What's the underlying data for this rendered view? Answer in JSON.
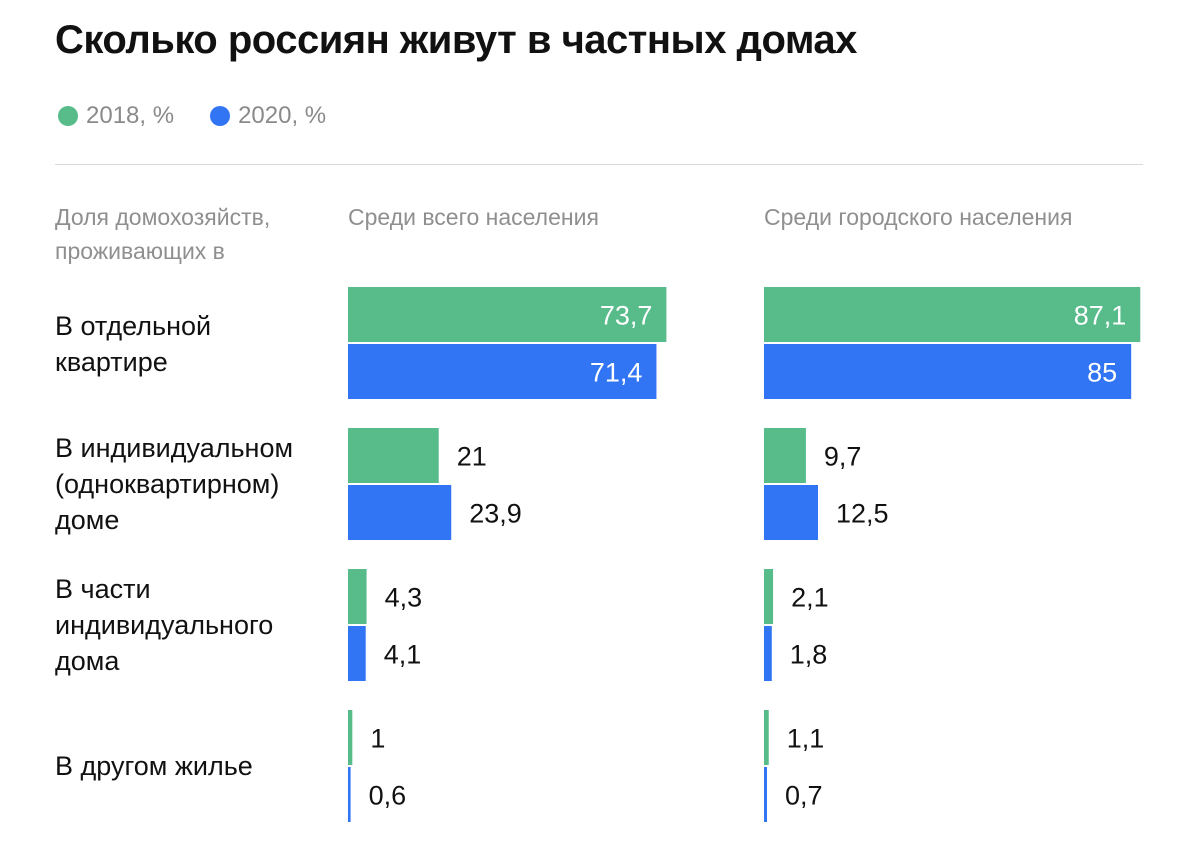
{
  "title": "Сколько россиян живут в частных домах",
  "legend": [
    {
      "label": "2018, %",
      "color": "#57bb8a"
    },
    {
      "label": "2020, %",
      "color": "#3175f5"
    }
  ],
  "header": {
    "row_header": "Доля домохозяйств, проживающих в",
    "col_all": "Среди всего населения",
    "col_urban": "Среди городского населения"
  },
  "chart_data": {
    "type": "bar",
    "orientation": "horizontal",
    "title": "Сколько россиян живут в частных домах",
    "categories": [
      "В отдельной квартире",
      "В индивидуальном (одноквартирном) доме",
      "В части индивидуального дома",
      "В другом жилье"
    ],
    "panels": [
      {
        "name": "Среди всего населения",
        "series": [
          {
            "name": "2018, %",
            "values": [
              73.7,
              21,
              4.3,
              1
            ],
            "labels": [
              "73,7",
              "21",
              "4,3",
              "1"
            ]
          },
          {
            "name": "2020, %",
            "values": [
              71.4,
              23.9,
              4.1,
              0.6
            ],
            "labels": [
              "71,4",
              "23,9",
              "4,1",
              "0,6"
            ]
          }
        ]
      },
      {
        "name": "Среди городского населения",
        "series": [
          {
            "name": "2018, %",
            "values": [
              87.1,
              9.7,
              2.1,
              1.1
            ],
            "labels": [
              "87,1",
              "9,7",
              "2,1",
              "1,1"
            ]
          },
          {
            "name": "2020, %",
            "values": [
              85,
              12.5,
              1.8,
              0.7
            ],
            "labels": [
              "85",
              "12,5",
              "1,8",
              "0,7"
            ]
          }
        ]
      }
    ],
    "xlim": [
      0,
      100
    ],
    "grid": false,
    "legend": "top-left"
  }
}
